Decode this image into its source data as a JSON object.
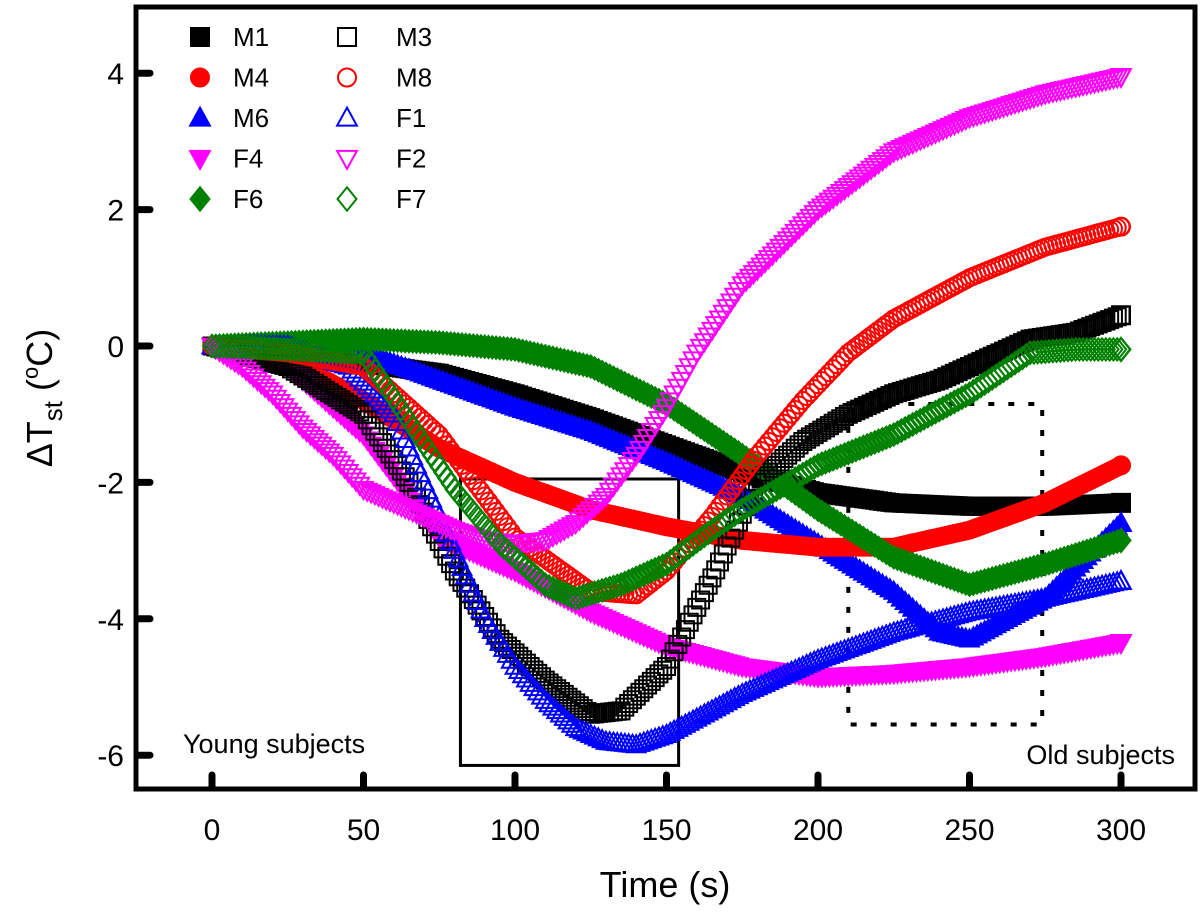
{
  "chart_data": {
    "type": "scatter",
    "xlabel": "Time (s)",
    "ylabel": {
      "delta": "ΔT",
      "sub": "st",
      "unit_open": " (",
      "deg": "o",
      "unit_close": "C)"
    },
    "xlim": [
      -25,
      310
    ],
    "ylim": [
      -6.6,
      5
    ],
    "xticks": [
      0,
      50,
      100,
      150,
      200,
      250,
      300
    ],
    "yticks": [
      -6,
      -4,
      -2,
      0,
      2,
      4
    ],
    "grid": false,
    "legend_position": "top-left",
    "annotations": {
      "young": "Young subjects",
      "old": "Old subjects"
    },
    "regions": [
      {
        "name": "young-subjects-box",
        "style": "solid",
        "x": [
          82,
          154
        ],
        "y": [
          -6.15,
          -1.95
        ]
      },
      {
        "name": "old-subjects-box",
        "style": "dotted",
        "x": [
          210,
          274
        ],
        "y": [
          -5.55,
          -0.85
        ]
      }
    ],
    "series": [
      {
        "name": "M1",
        "color": "#000000",
        "marker": "square",
        "filled": true,
        "x": [
          0,
          25,
          50,
          75,
          100,
          125,
          150,
          175,
          200,
          225,
          250,
          275,
          300
        ],
        "y": [
          0,
          -0.1,
          -0.25,
          -0.4,
          -0.7,
          -1.05,
          -1.45,
          -1.85,
          -2.15,
          -2.3,
          -2.35,
          -2.35,
          -2.3
        ]
      },
      {
        "name": "M3",
        "color": "#000000",
        "marker": "square",
        "filled": false,
        "x": [
          0,
          25,
          50,
          65,
          80,
          95,
          110,
          125,
          135,
          150,
          165,
          180,
          195,
          210,
          225,
          240,
          255,
          270,
          285,
          300
        ],
        "y": [
          0,
          -0.3,
          -1.0,
          -2.0,
          -3.3,
          -4.3,
          -4.9,
          -5.4,
          -5.35,
          -4.7,
          -3.4,
          -2.0,
          -1.4,
          -1.0,
          -0.7,
          -0.5,
          -0.2,
          0.1,
          0.2,
          0.45
        ]
      },
      {
        "name": "M4",
        "color": "#ff0000",
        "marker": "circle",
        "filled": true,
        "x": [
          0,
          25,
          50,
          75,
          100,
          125,
          150,
          175,
          200,
          225,
          250,
          275,
          300
        ],
        "y": [
          0,
          -0.2,
          -0.8,
          -1.5,
          -2.0,
          -2.4,
          -2.65,
          -2.85,
          -2.95,
          -2.95,
          -2.7,
          -2.3,
          -1.75
        ]
      },
      {
        "name": "M8",
        "color": "#ff0000",
        "marker": "circle",
        "filled": false,
        "x": [
          0,
          25,
          50,
          75,
          100,
          125,
          140,
          150,
          165,
          180,
          195,
          210,
          225,
          250,
          275,
          300
        ],
        "y": [
          0,
          -0.1,
          -0.3,
          -1.3,
          -2.8,
          -3.6,
          -3.65,
          -3.3,
          -2.5,
          -1.6,
          -0.8,
          -0.1,
          0.4,
          1.0,
          1.45,
          1.75
        ]
      },
      {
        "name": "M6",
        "color": "#0000ff",
        "marker": "triangle-up",
        "filled": true,
        "x": [
          0,
          25,
          50,
          75,
          100,
          125,
          150,
          175,
          200,
          225,
          240,
          250,
          275,
          300
        ],
        "y": [
          0,
          0.05,
          -0.1,
          -0.5,
          -0.9,
          -1.25,
          -1.7,
          -2.2,
          -2.9,
          -3.6,
          -4.2,
          -4.3,
          -3.7,
          -2.6
        ]
      },
      {
        "name": "F1",
        "color": "#0000ff",
        "marker": "triangle-up",
        "filled": false,
        "x": [
          0,
          25,
          45,
          60,
          70,
          80,
          90,
          100,
          110,
          120,
          130,
          140,
          150,
          175,
          200,
          225,
          250,
          275,
          300
        ],
        "y": [
          0,
          0,
          -0.3,
          -1.0,
          -2.0,
          -3.0,
          -4.0,
          -4.7,
          -5.2,
          -5.6,
          -5.8,
          -5.85,
          -5.7,
          -5.1,
          -4.6,
          -4.2,
          -3.9,
          -3.7,
          -3.45
        ]
      },
      {
        "name": "F4",
        "color": "#ff00ff",
        "marker": "triangle-down",
        "filled": true,
        "x": [
          0,
          25,
          50,
          75,
          100,
          125,
          150,
          175,
          200,
          225,
          250,
          275,
          300
        ],
        "y": [
          0,
          -0.3,
          -1.3,
          -2.8,
          -3.3,
          -3.9,
          -4.4,
          -4.7,
          -4.85,
          -4.8,
          -4.7,
          -4.55,
          -4.35
        ]
      },
      {
        "name": "F2",
        "color": "#ff00ff",
        "marker": "triangle-down",
        "filled": false,
        "x": [
          0,
          10,
          20,
          30,
          40,
          50,
          60,
          70,
          80,
          90,
          100,
          110,
          120,
          130,
          140,
          150,
          160,
          175,
          200,
          225,
          250,
          275,
          300
        ],
        "y": [
          0,
          -0.3,
          -0.7,
          -1.2,
          -1.6,
          -2.1,
          -2.3,
          -2.5,
          -2.7,
          -2.85,
          -2.9,
          -2.85,
          -2.6,
          -2.2,
          -1.6,
          -0.9,
          -0.1,
          0.9,
          2.0,
          2.85,
          3.35,
          3.7,
          3.95
        ]
      },
      {
        "name": "F6",
        "color": "#008000",
        "marker": "diamond",
        "filled": true,
        "x": [
          0,
          25,
          50,
          75,
          100,
          125,
          150,
          175,
          200,
          225,
          250,
          275,
          300
        ],
        "y": [
          0,
          0.05,
          0.1,
          0.05,
          -0.05,
          -0.3,
          -0.85,
          -1.6,
          -2.4,
          -3.1,
          -3.5,
          -3.2,
          -2.85
        ]
      },
      {
        "name": "F7",
        "color": "#008000",
        "marker": "diamond",
        "filled": false,
        "x": [
          0,
          25,
          50,
          65,
          80,
          95,
          110,
          120,
          135,
          150,
          165,
          175,
          200,
          225,
          250,
          270,
          285,
          300
        ],
        "y": [
          0,
          -0.05,
          -0.1,
          -1.1,
          -2.1,
          -2.9,
          -3.5,
          -3.7,
          -3.5,
          -3.2,
          -2.7,
          -2.4,
          -1.75,
          -1.3,
          -0.7,
          -0.1,
          -0.05,
          -0.05
        ]
      }
    ]
  }
}
